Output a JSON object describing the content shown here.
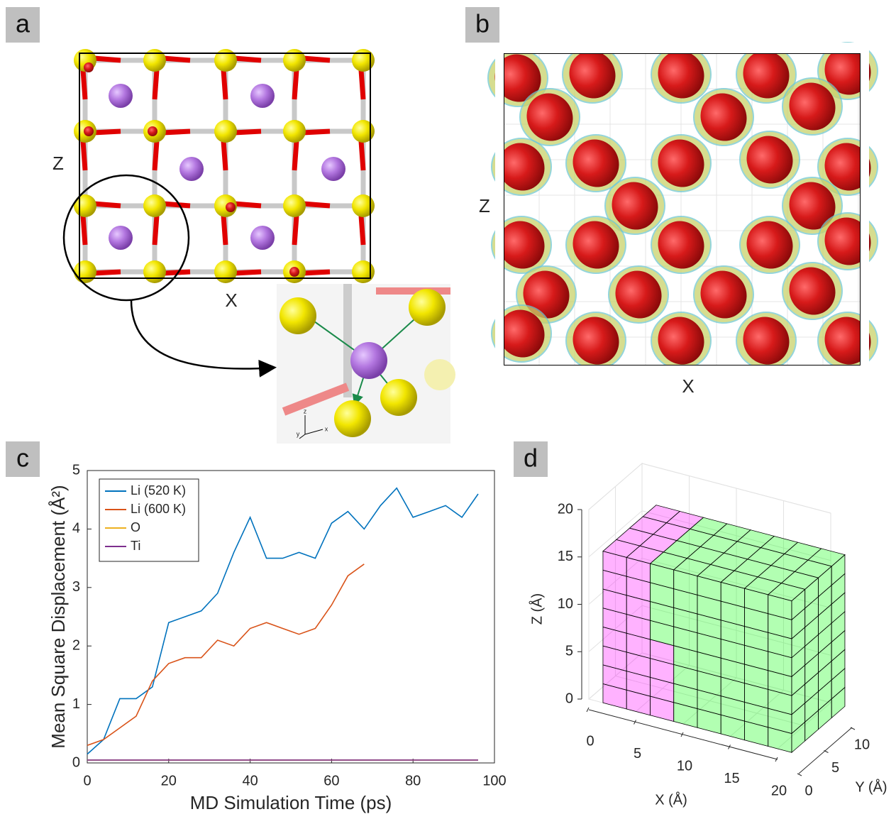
{
  "panel_a": {
    "label": "a",
    "x_label": "X",
    "z_label": "Z",
    "inset_axes": [
      "z",
      "y",
      "x"
    ]
  },
  "panel_b": {
    "label": "b",
    "x_label": "X",
    "z_label": "Z"
  },
  "panel_c": {
    "label": "c"
  },
  "panel_d": {
    "label": "d"
  },
  "chart_data": [
    {
      "type": "line",
      "x_label": "MD Simulation Time (ps)",
      "y_label": "Mean Square Displacement (Å²)",
      "x": [
        0,
        4,
        8,
        12,
        16,
        20,
        24,
        28,
        32,
        36,
        40,
        44,
        48,
        52,
        56,
        60,
        64,
        68,
        72,
        76,
        80,
        84,
        88,
        92,
        96
      ],
      "series": [
        {
          "name": "Li (520 K)",
          "color": "#0072bd",
          "values": [
            0.15,
            0.4,
            1.1,
            1.1,
            1.3,
            2.4,
            2.5,
            2.6,
            2.9,
            3.6,
            4.2,
            3.5,
            3.5,
            3.6,
            3.5,
            4.1,
            4.3,
            4.0,
            4.4,
            4.7,
            4.2,
            4.3,
            4.4,
            4.2,
            4.6
          ]
        },
        {
          "name": "Li (600 K)",
          "color": "#d95319",
          "values": [
            0.3,
            0.4,
            0.6,
            0.8,
            1.4,
            1.7,
            1.8,
            1.8,
            2.1,
            2.0,
            2.3,
            2.4,
            2.3,
            2.2,
            2.3,
            2.7,
            3.2,
            3.4,
            null,
            null,
            null,
            null,
            null,
            null,
            null
          ]
        },
        {
          "name": "O",
          "color": "#edb120",
          "values": [
            0.05,
            0.05,
            0.05,
            0.05,
            0.05,
            0.05,
            0.05,
            0.05,
            0.05,
            0.05,
            0.05,
            0.05,
            0.05,
            0.05,
            0.05,
            0.05,
            0.05,
            0.05,
            0.05,
            0.05,
            0.05,
            0.05,
            0.05,
            0.05,
            0.05
          ]
        },
        {
          "name": "Ti",
          "color": "#7e2f8e",
          "values": [
            0.05,
            0.05,
            0.05,
            0.05,
            0.05,
            0.05,
            0.05,
            0.05,
            0.05,
            0.05,
            0.05,
            0.05,
            0.05,
            0.05,
            0.05,
            0.05,
            0.05,
            0.05,
            0.05,
            0.05,
            0.05,
            0.05,
            0.05,
            0.05,
            0.05
          ]
        }
      ],
      "xlim": [
        0,
        100
      ],
      "ylim": [
        0,
        5
      ],
      "xticks": [
        0,
        20,
        40,
        60,
        80,
        100
      ],
      "yticks": [
        0,
        1,
        2,
        3,
        4,
        5
      ],
      "legend": "upper-left"
    },
    {
      "type": "voxel",
      "x_label": "X (Å)",
      "y_label": "Y (Å)",
      "z_label": "Z (Å)",
      "xlim": [
        0,
        20
      ],
      "ylim": [
        0,
        10
      ],
      "zlim": [
        0,
        20
      ],
      "xticks": [
        0,
        5,
        10,
        15,
        20
      ],
      "yticks": [
        0,
        5,
        10
      ],
      "zticks": [
        0,
        5,
        10,
        15,
        20
      ],
      "colors": [
        "#ff00ff",
        "#00ff00"
      ],
      "grid": true
    }
  ]
}
